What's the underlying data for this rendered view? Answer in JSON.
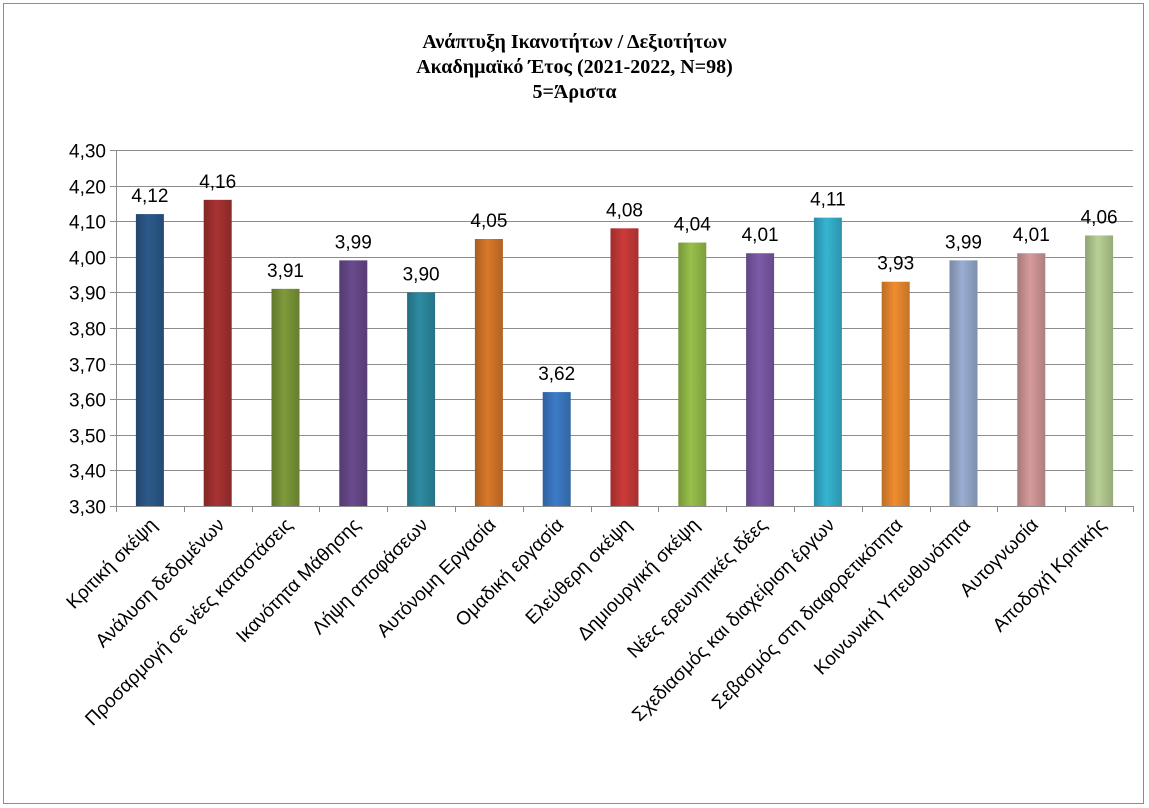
{
  "chart_data": {
    "type": "bar",
    "title_lines": [
      "Ανάπτυξη Ικανοτήτων / Δεξιοτήτων",
      "Ακαδημαϊκό Έτος (2021-2022, N=98)",
      "5=Άριστα"
    ],
    "categories": [
      "Κριτική σκέψη",
      "Ανάλυση δεδομένων",
      "Προσαρμογή σε νέες καταστάσεις",
      "Ικανότητα Μάθησης",
      "Λήψη αποφάσεων",
      "Αυτόνομη Εργασία",
      "Ομαδική εργασία",
      "Ελεύθερη σκέψη",
      "Δημιουργική σκέψη",
      "Νέες ερευνητικές ιδέες",
      "Σχεδιασμός και διαχείριση έργων",
      "Σεβασμός στη διαφορετικότητα",
      "Κοινωνική Υπευθυνότητα",
      "Αυτογνωσία",
      "Αποδοχή Κριτικής"
    ],
    "values": [
      4.12,
      4.16,
      3.91,
      3.99,
      3.9,
      4.05,
      3.62,
      4.08,
      4.04,
      4.01,
      4.11,
      3.93,
      3.99,
      4.01,
      4.06
    ],
    "value_labels": [
      "4,12",
      "4,16",
      "3,91",
      "3,99",
      "3,90",
      "4,05",
      "3,62",
      "4,08",
      "4,04",
      "4,01",
      "4,11",
      "3,93",
      "3,99",
      "4,01",
      "4,06"
    ],
    "colors": [
      "#2c5a8c",
      "#a83232",
      "#7e9a3a",
      "#6a4a8e",
      "#2d8ca3",
      "#d9782a",
      "#3c7cc8",
      "#cc3a3a",
      "#98c04a",
      "#7e5aaa",
      "#36b4d2",
      "#f08c30",
      "#9aaed2",
      "#d69a9a",
      "#b8d094"
    ],
    "yticks": [
      "4,30",
      "4,20",
      "4,10",
      "4,00",
      "3,90",
      "3,80",
      "3,70",
      "3,60",
      "3,50",
      "3,40",
      "3,30"
    ],
    "ylim": [
      3.3,
      4.3
    ],
    "ystep": 0.1,
    "grid": true,
    "legend": "none"
  }
}
